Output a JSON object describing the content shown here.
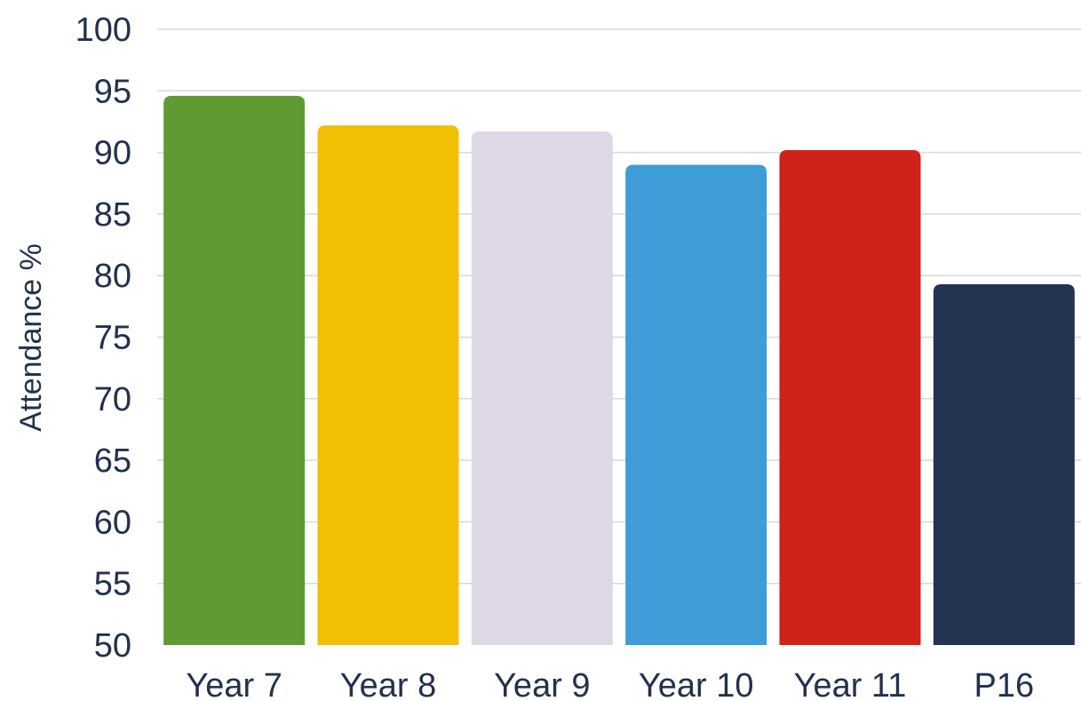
{
  "chart_data": {
    "type": "bar",
    "title": "",
    "xlabel": "",
    "ylabel": "Attendance %",
    "ylim": [
      50,
      100
    ],
    "yticks": [
      50,
      55,
      60,
      65,
      70,
      75,
      80,
      85,
      90,
      95,
      100
    ],
    "grid": true,
    "legend": "none",
    "categories": [
      "Year 7",
      "Year 8",
      "Year 9",
      "Year 10",
      "Year 11",
      "P16"
    ],
    "values": [
      94.6,
      92.2,
      91.7,
      89.0,
      90.2,
      79.3
    ],
    "bar_colors": [
      "#5f9a32",
      "#f3bf04",
      "#ded8e6",
      "#3e9cd6",
      "#cf2319",
      "#253352"
    ]
  }
}
